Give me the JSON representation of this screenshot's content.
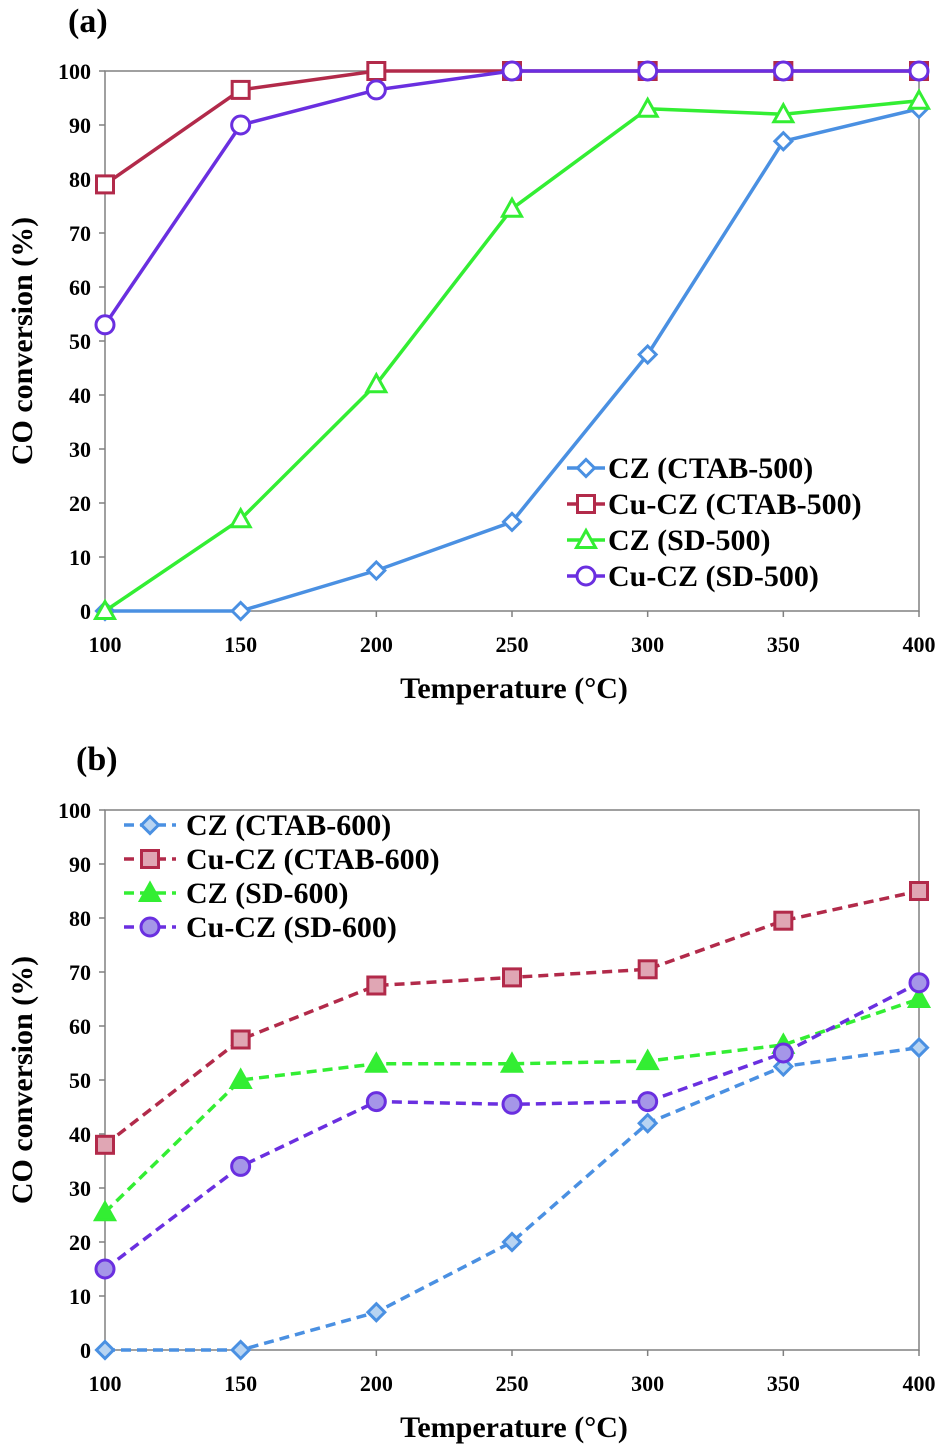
{
  "chart_data": [
    {
      "type": "line",
      "panel_label": "(a)",
      "xlabel": "Temperature (°C)",
      "ylabel": "CO conversion (%)",
      "xlim": [
        100,
        400
      ],
      "ylim": [
        0,
        100
      ],
      "x_ticks": [
        "100",
        "150",
        "200",
        "250",
        "300",
        "350",
        "400"
      ],
      "y_ticks": [
        "0",
        "10",
        "20",
        "30",
        "40",
        "50",
        "60",
        "70",
        "80",
        "90",
        "100"
      ],
      "grid": false,
      "legend_position": "bottom-right",
      "x": [
        100,
        150,
        200,
        250,
        300,
        350,
        400
      ],
      "series": [
        {
          "name": "CZ (CTAB-500)",
          "color": "#4a90e2",
          "marker": "diamond",
          "fill": "hollow",
          "dashed": false,
          "values": [
            0,
            0,
            7.5,
            16.5,
            47.5,
            87,
            93
          ]
        },
        {
          "name": "Cu-CZ (CTAB-500)",
          "color": "#b22a4a",
          "marker": "square",
          "fill": "hollow",
          "dashed": false,
          "values": [
            79,
            96.5,
            100,
            100,
            100,
            100,
            100
          ]
        },
        {
          "name": "CZ (SD-500)",
          "color": "#33ee33",
          "marker": "triangle",
          "fill": "hollow",
          "dashed": false,
          "values": [
            0,
            17,
            42,
            74.5,
            93,
            92,
            94.5
          ]
        },
        {
          "name": "Cu-CZ (SD-500)",
          "color": "#6a2fe0",
          "marker": "circle",
          "fill": "hollow",
          "dashed": false,
          "values": [
            53,
            90,
            96.5,
            100,
            100,
            100,
            100
          ]
        }
      ]
    },
    {
      "type": "line",
      "panel_label": "(b)",
      "xlabel": "Temperature (°C)",
      "ylabel": "CO conversion (%)",
      "xlim": [
        100,
        400
      ],
      "ylim": [
        0,
        100
      ],
      "x_ticks": [
        "100",
        "150",
        "200",
        "250",
        "300",
        "350",
        "400"
      ],
      "y_ticks": [
        "0",
        "10",
        "20",
        "30",
        "40",
        "50",
        "60",
        "70",
        "80",
        "90",
        "100"
      ],
      "grid": false,
      "legend_position": "top-left",
      "x": [
        100,
        150,
        200,
        250,
        300,
        350,
        400
      ],
      "series": [
        {
          "name": "CZ (CTAB-600)",
          "color": "#4a90e2",
          "marker": "diamond",
          "fill": "#b8d4f2",
          "dashed": true,
          "values": [
            0,
            0,
            7,
            20,
            42,
            52.5,
            56
          ]
        },
        {
          "name": "Cu-CZ (CTAB-600)",
          "color": "#b22a4a",
          "marker": "square",
          "fill": "#e0a6b4",
          "dashed": true,
          "values": [
            38,
            57.5,
            67.5,
            69,
            70.5,
            79.5,
            85
          ]
        },
        {
          "name": "CZ (SD-600)",
          "color": "#33ee33",
          "marker": "triangle",
          "fill": "#33ee33",
          "dashed": true,
          "values": [
            25.5,
            50,
            53,
            53,
            53.5,
            56.5,
            65
          ]
        },
        {
          "name": "Cu-CZ (SD-600)",
          "color": "#6a2fe0",
          "marker": "circle",
          "fill": "#a596e8",
          "dashed": true,
          "values": [
            15,
            34,
            46,
            45.5,
            46,
            55,
            68
          ]
        }
      ]
    }
  ]
}
